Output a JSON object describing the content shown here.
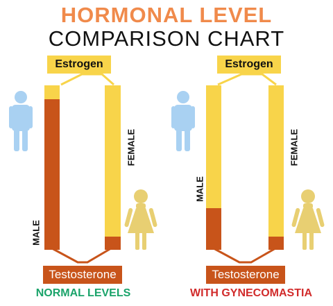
{
  "title_line1": "HORMONAL LEVEL",
  "title_line2": "COMPARISON CHART",
  "panels": [
    {
      "estrogen_label": "Estrogen",
      "testosterone_label": "Testosterone",
      "male_label": "MALE",
      "female_label": "FEMALE",
      "caption": "NORMAL LEVELS",
      "caption_color": "#1aa36a"
    },
    {
      "estrogen_label": "Estrogen",
      "testosterone_label": "Testosterone",
      "male_label": "MALE",
      "female_label": "FEMALE",
      "caption": "WITH GYNECOMASTIA",
      "caption_color": "#d12b2b"
    }
  ],
  "colors": {
    "title_accent": "#f08a4b",
    "estrogen": "#f8d44a",
    "testosterone": "#c8541a",
    "male_figure": "#a9d1f2",
    "female_figure": "#e8cf72",
    "connector": "#f8d44a"
  },
  "icons": [
    "male-figure-icon",
    "female-figure-icon"
  ]
}
